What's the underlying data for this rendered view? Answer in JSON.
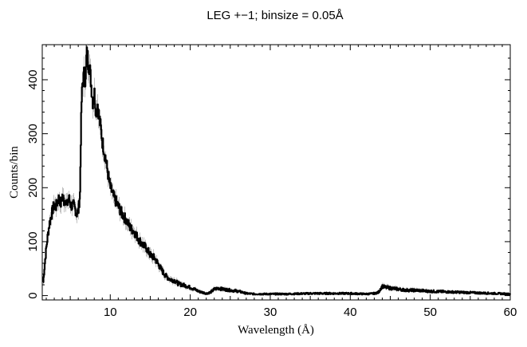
{
  "chart_data": {
    "type": "line",
    "title": "LEG +−1; binsize = 0.05Å",
    "xlabel": "Wavelength (Å)",
    "ylabel": "Counts/bin",
    "xlim": [
      1.5,
      60
    ],
    "ylim": [
      -8,
      465
    ],
    "x_ticks": [
      10,
      20,
      30,
      40,
      50,
      60
    ],
    "y_ticks": [
      0,
      100,
      200,
      300,
      400
    ],
    "grid": false,
    "series_color": "#000000",
    "error_color": "#9a9a9a",
    "series": [
      {
        "points": [
          [
            1.6,
            25
          ],
          [
            1.8,
            60
          ],
          [
            2.0,
            90
          ],
          [
            2.2,
            115
          ],
          [
            2.4,
            135
          ],
          [
            2.6,
            148
          ],
          [
            2.8,
            160
          ],
          [
            3.0,
            168
          ],
          [
            3.2,
            165
          ],
          [
            3.4,
            175
          ],
          [
            3.6,
            182
          ],
          [
            3.8,
            170
          ],
          [
            4.0,
            185
          ],
          [
            4.2,
            175
          ],
          [
            4.4,
            178
          ],
          [
            4.6,
            168
          ],
          [
            4.8,
            182
          ],
          [
            5.0,
            170
          ],
          [
            5.2,
            165
          ],
          [
            5.4,
            168
          ],
          [
            5.6,
            160
          ],
          [
            5.8,
            152
          ],
          [
            6.0,
            158
          ],
          [
            6.2,
            190
          ],
          [
            6.3,
            290
          ],
          [
            6.4,
            360
          ],
          [
            6.5,
            390
          ],
          [
            6.7,
            410
          ],
          [
            6.9,
            395
          ],
          [
            7.0,
            440
          ],
          [
            7.1,
            455
          ],
          [
            7.2,
            430
          ],
          [
            7.4,
            425
          ],
          [
            7.6,
            390
          ],
          [
            7.8,
            360
          ],
          [
            8.0,
            375
          ],
          [
            8.2,
            340
          ],
          [
            8.4,
            355
          ],
          [
            8.6,
            330
          ],
          [
            8.8,
            310
          ],
          [
            9.0,
            285
          ],
          [
            9.2,
            270
          ],
          [
            9.5,
            245
          ],
          [
            9.8,
            215
          ],
          [
            10.0,
            200
          ],
          [
            10.5,
            180
          ],
          [
            11.0,
            165
          ],
          [
            11.5,
            150
          ],
          [
            12.0,
            140
          ],
          [
            12.5,
            125
          ],
          [
            13.0,
            118
          ],
          [
            13.5,
            105
          ],
          [
            14.0,
            95
          ],
          [
            14.5,
            88
          ],
          [
            15.0,
            75
          ],
          [
            15.5,
            70
          ],
          [
            16.0,
            58
          ],
          [
            16.5,
            45
          ],
          [
            17.0,
            35
          ],
          [
            17.5,
            30
          ],
          [
            18.0,
            28
          ],
          [
            18.5,
            22
          ],
          [
            19.0,
            20
          ],
          [
            19.5,
            18
          ],
          [
            20.0,
            15
          ],
          [
            20.5,
            12
          ],
          [
            21.0,
            8
          ],
          [
            21.5,
            6
          ],
          [
            22.0,
            4
          ],
          [
            22.5,
            6
          ],
          [
            23.0,
            12
          ],
          [
            23.5,
            14
          ],
          [
            24.0,
            12
          ],
          [
            24.5,
            11
          ],
          [
            25.0,
            10
          ],
          [
            25.5,
            9
          ],
          [
            26.0,
            8
          ],
          [
            26.5,
            6
          ],
          [
            27.0,
            4
          ],
          [
            28.0,
            3
          ],
          [
            29.0,
            3
          ],
          [
            30.0,
            3
          ],
          [
            32.0,
            3
          ],
          [
            35.0,
            4
          ],
          [
            38.0,
            4
          ],
          [
            40.0,
            4
          ],
          [
            42.0,
            3
          ],
          [
            43.0,
            4
          ],
          [
            43.5,
            6
          ],
          [
            43.8,
            14
          ],
          [
            44.0,
            17
          ],
          [
            44.5,
            15
          ],
          [
            45.0,
            14
          ],
          [
            46.0,
            12
          ],
          [
            47.0,
            10
          ],
          [
            48.0,
            10
          ],
          [
            49.0,
            9
          ],
          [
            50.0,
            8
          ],
          [
            52.0,
            7
          ],
          [
            54.0,
            6
          ],
          [
            56.0,
            5
          ],
          [
            58.0,
            4
          ],
          [
            60.0,
            3
          ]
        ]
      }
    ]
  }
}
